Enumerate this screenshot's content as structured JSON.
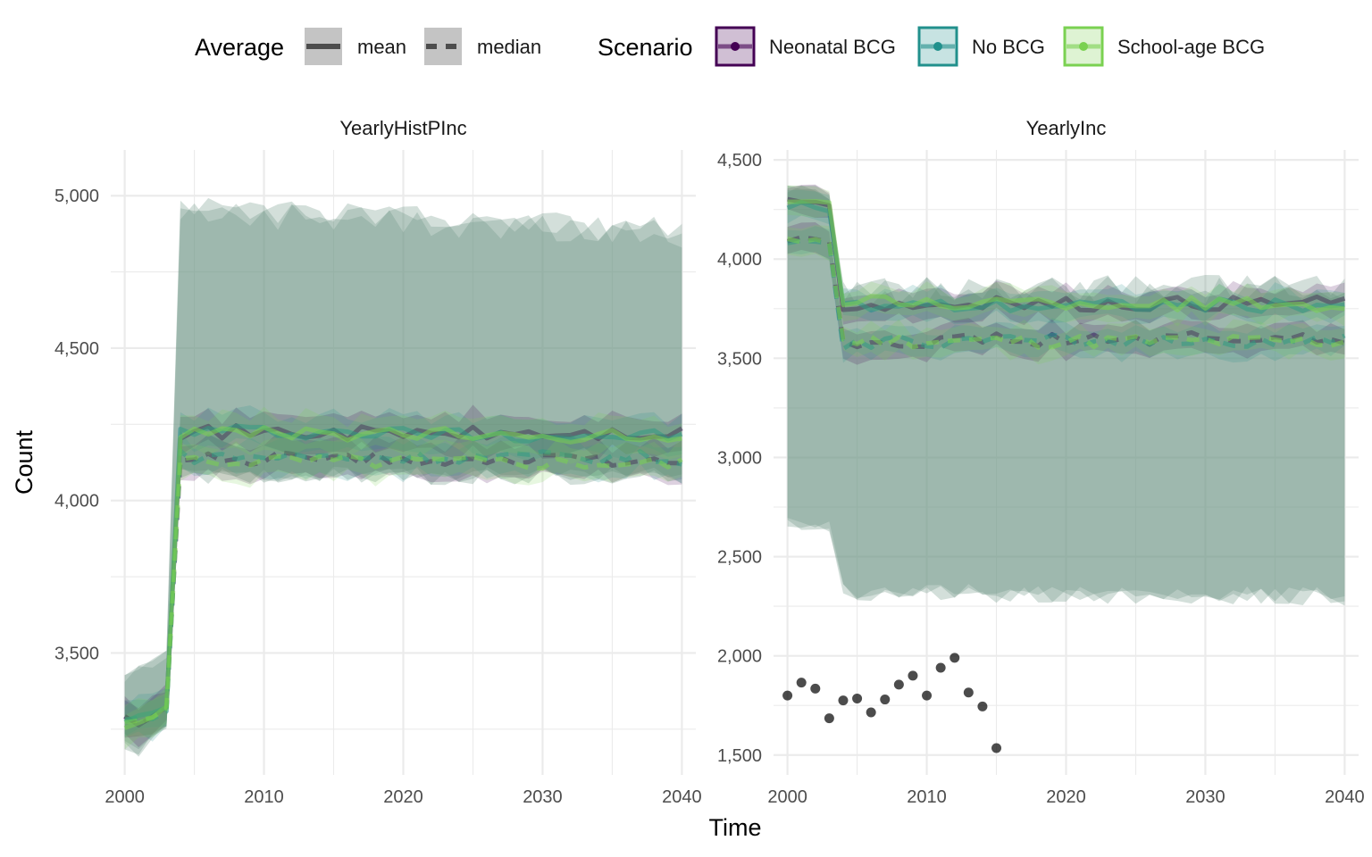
{
  "chart_data": {
    "type": "line",
    "xlabel": "Time",
    "ylabel": "Count",
    "legend": {
      "placement": "top",
      "average_title": "Average",
      "average_items": [
        {
          "label": "mean",
          "linetype": "solid"
        },
        {
          "label": "median",
          "linetype": "dashed"
        }
      ],
      "scenario_title": "Scenario",
      "scenario_items": [
        {
          "label": "Neonatal BCG",
          "color": "#440154"
        },
        {
          "label": "No BCG",
          "color": "#21908C"
        },
        {
          "label": "School-age BCG",
          "color": "#7AD151"
        }
      ]
    },
    "band_color": "#6E9485",
    "panels": [
      {
        "title": "YearlyHistPInc",
        "xlim": [
          1999,
          2041
        ],
        "ylim": [
          3100,
          5150
        ],
        "xticks": [
          2000,
          2010,
          2020,
          2030,
          2040
        ],
        "yticks": [
          3500,
          4000,
          4500,
          5000
        ],
        "ytick_labels": [
          "3,500",
          "4,000",
          "4,500",
          "5,000"
        ],
        "band": {
          "x": [
            2000,
            2001,
            2002,
            2003,
            2004,
            2040
          ],
          "low": [
            3200,
            3180,
            3220,
            3260,
            4080,
            4080
          ],
          "high": [
            3420,
            3440,
            3460,
            3500,
            4950,
            4880
          ]
        },
        "series": [
          {
            "scenario": "Neonatal BCG",
            "average": "mean",
            "x": [
              2000,
              2001,
              2002,
              2003,
              2004,
              2040
            ],
            "y": [
              3300,
              3270,
              3300,
              3330,
              4225,
              4215
            ]
          },
          {
            "scenario": "Neonatal BCG",
            "average": "median",
            "x": [
              2000,
              2001,
              2002,
              2003,
              2004,
              2040
            ],
            "y": [
              3290,
              3260,
              3290,
              3320,
              4140,
              4130
            ]
          },
          {
            "scenario": "No BCG",
            "average": "mean",
            "x": [
              2000,
              2001,
              2002,
              2003,
              2004,
              2040
            ],
            "y": [
              3280,
              3290,
              3300,
              3320,
              4230,
              4210
            ]
          },
          {
            "scenario": "No BCG",
            "average": "median",
            "x": [
              2000,
              2001,
              2002,
              2003,
              2004,
              2040
            ],
            "y": [
              3280,
              3285,
              3290,
              3310,
              4145,
              4140
            ]
          },
          {
            "scenario": "School-age BCG",
            "average": "mean",
            "x": [
              2000,
              2001,
              2002,
              2003,
              2004,
              2040
            ],
            "y": [
              3260,
              3270,
              3290,
              3330,
              4220,
              4210
            ]
          },
          {
            "scenario": "School-age BCG",
            "average": "median",
            "x": [
              2000,
              2001,
              2002,
              2003,
              2004,
              2040
            ],
            "y": [
              3270,
              3280,
              3285,
              3310,
              4135,
              4125
            ]
          }
        ],
        "points": []
      },
      {
        "title": "YearlyInc",
        "xlim": [
          1999,
          2041
        ],
        "ylim": [
          1400,
          4550
        ],
        "xticks": [
          2000,
          2010,
          2020,
          2030,
          2040
        ],
        "yticks": [
          1500,
          2000,
          2500,
          3000,
          3500,
          4000,
          4500
        ],
        "ytick_labels": [
          "1,500",
          "2,000",
          "2,500",
          "3,000",
          "3,500",
          "4,000",
          "4,500"
        ],
        "band": {
          "x": [
            2000,
            2001,
            2002,
            2003,
            2004,
            2040
          ],
          "low": [
            2680,
            2660,
            2660,
            2650,
            2320,
            2300
          ],
          "high": [
            4360,
            4370,
            4350,
            4320,
            3830,
            3850
          ]
        },
        "series": [
          {
            "scenario": "Neonatal BCG",
            "average": "mean",
            "x": [
              2000,
              2001,
              2002,
              2003,
              2004,
              2040
            ],
            "y": [
              4290,
              4300,
              4280,
              4270,
              3770,
              3780
            ]
          },
          {
            "scenario": "Neonatal BCG",
            "average": "median",
            "x": [
              2000,
              2001,
              2002,
              2003,
              2004,
              2040
            ],
            "y": [
              4090,
              4100,
              4110,
              4090,
              3590,
              3600
            ]
          },
          {
            "scenario": "No BCG",
            "average": "mean",
            "x": [
              2000,
              2001,
              2002,
              2003,
              2004,
              2040
            ],
            "y": [
              4270,
              4280,
              4260,
              4250,
              3760,
              3770
            ]
          },
          {
            "scenario": "No BCG",
            "average": "median",
            "x": [
              2000,
              2001,
              2002,
              2003,
              2004,
              2040
            ],
            "y": [
              4080,
              4090,
              4080,
              4070,
              3580,
              3590
            ]
          },
          {
            "scenario": "School-age BCG",
            "average": "mean",
            "x": [
              2000,
              2001,
              2002,
              2003,
              2004,
              2040
            ],
            "y": [
              4300,
              4290,
              4300,
              4280,
              3780,
              3770
            ]
          },
          {
            "scenario": "School-age BCG",
            "average": "median",
            "x": [
              2000,
              2001,
              2002,
              2003,
              2004,
              2040
            ],
            "y": [
              4100,
              4090,
              4100,
              4080,
              3585,
              3580
            ]
          }
        ],
        "points": [
          {
            "x": 2000,
            "y": 1800
          },
          {
            "x": 2001,
            "y": 1865
          },
          {
            "x": 2002,
            "y": 1835
          },
          {
            "x": 2003,
            "y": 1685
          },
          {
            "x": 2004,
            "y": 1775
          },
          {
            "x": 2005,
            "y": 1785
          },
          {
            "x": 2006,
            "y": 1715
          },
          {
            "x": 2007,
            "y": 1780
          },
          {
            "x": 2008,
            "y": 1855
          },
          {
            "x": 2009,
            "y": 1900
          },
          {
            "x": 2010,
            "y": 1800
          },
          {
            "x": 2011,
            "y": 1940
          },
          {
            "x": 2012,
            "y": 1990
          },
          {
            "x": 2013,
            "y": 1815
          },
          {
            "x": 2014,
            "y": 1745
          },
          {
            "x": 2015,
            "y": 1535
          }
        ]
      }
    ]
  }
}
